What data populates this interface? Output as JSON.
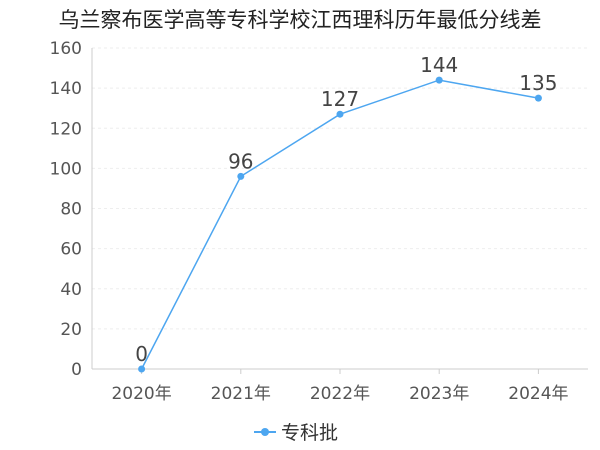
{
  "chart_data": {
    "type": "line",
    "title": "乌兰察布医学高等专科学校江西理科历年最低分线差",
    "categories": [
      "2020年",
      "2021年",
      "2022年",
      "2023年",
      "2024年"
    ],
    "series": [
      {
        "name": "专科批",
        "values": [
          0,
          96,
          127,
          144,
          135
        ]
      }
    ],
    "ylim": [
      0,
      160
    ],
    "yticks": [
      0,
      20,
      40,
      60,
      80,
      100,
      120,
      140,
      160
    ],
    "xlabel": "",
    "ylabel": "",
    "grid": true,
    "legend": "bottom-center",
    "data_labels": true,
    "colors": {
      "series": "#4da6f0",
      "grid": "#eeeeee",
      "axis": "#cccccc"
    }
  }
}
